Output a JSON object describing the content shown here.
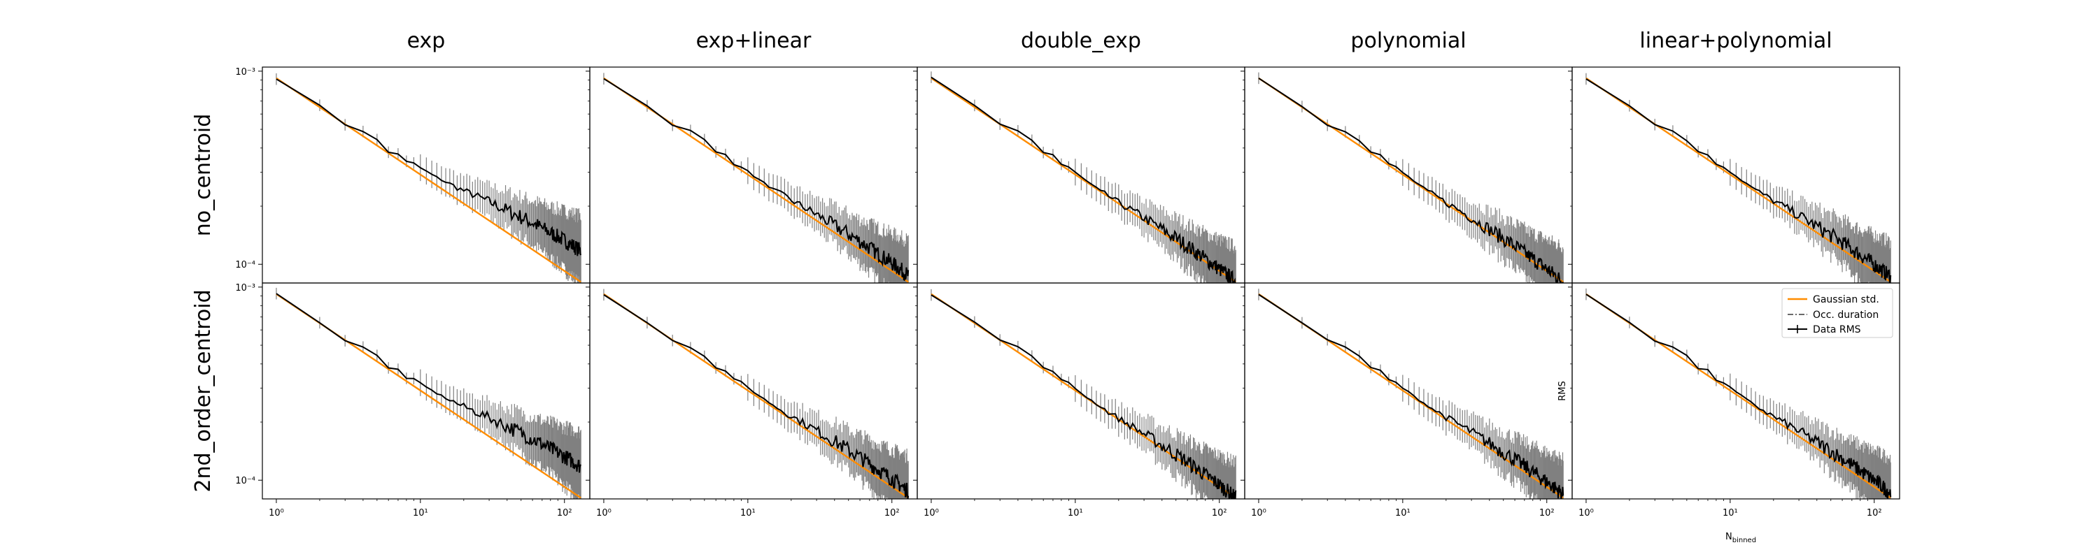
{
  "columns": [
    "exp",
    "exp+linear",
    "double_exp",
    "polynomial",
    "linear+polynomial"
  ],
  "rows": [
    "no_centroid",
    "2nd_order_centroid"
  ],
  "y_tick_labels": {
    "top": "10⁻³",
    "bottom": "10⁻⁴"
  },
  "x_tick_labels": [
    "10⁰",
    "10¹",
    "10²"
  ],
  "legend": {
    "gaussian": "Gaussian std.",
    "occ": "Occ. duration",
    "rms": "Data RMS"
  },
  "xlabel": "N",
  "xlabel_sub": "binned",
  "ylabel": "RMS",
  "colors": {
    "gaussian": "#ff8c00",
    "rms": "#000000",
    "err": "#808080",
    "occ": "#555555"
  },
  "chart_data": {
    "type": "line",
    "layout": "grid 2 rows x 5 columns, shared log axes",
    "xscale": "log",
    "yscale": "log",
    "xlim": [
      0.8,
      150
    ],
    "ylim": [
      8e-05,
      0.00105
    ],
    "series": [
      {
        "name": "Gaussian std.",
        "x": [
          1,
          130
        ],
        "y": [
          0.00092,
          8.1e-05
        ]
      },
      {
        "name": "Data RMS",
        "x": [
          1,
          2,
          3,
          4,
          5,
          6,
          7,
          8,
          9,
          10,
          12,
          15,
          20,
          30,
          40,
          60,
          80,
          100,
          130
        ],
        "y": [
          0.00092,
          0.00066,
          0.00053,
          0.00049,
          0.00044,
          0.00038,
          0.00037,
          0.00033,
          0.00032,
          0.0003,
          0.00027,
          0.00024,
          0.00021,
          0.00018,
          0.00016,
          0.00014,
          0.000125,
          0.00012,
          0.000115
        ]
      }
    ],
    "panel_tail_rms_ratio": {
      "no_centroid": [
        1.45,
        1.08,
        1.0,
        1.0,
        1.06
      ],
      "2nd_order_centroid": [
        1.45,
        1.08,
        1.0,
        1.04,
        1.06
      ]
    }
  }
}
